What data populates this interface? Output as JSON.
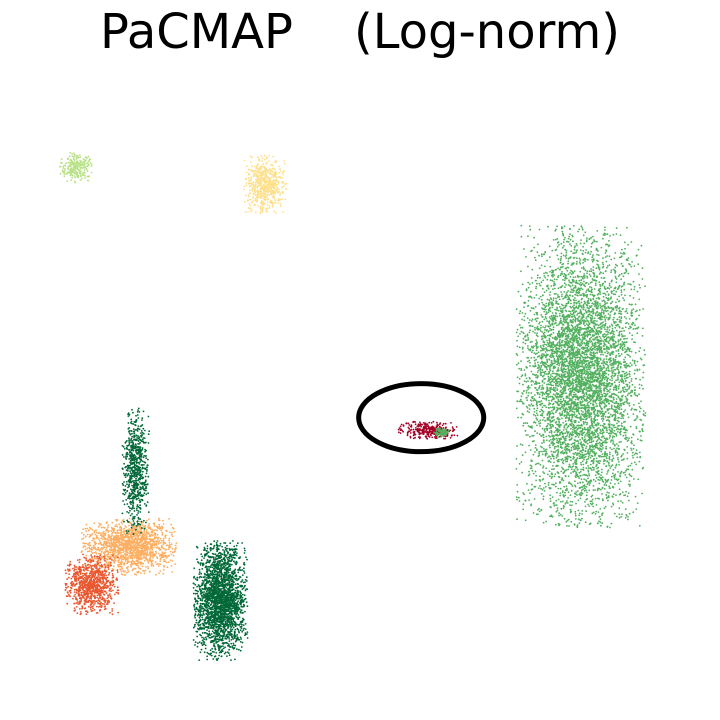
{
  "chart_data": {
    "type": "scatter",
    "title": "PaCMAP    (Log-norm)",
    "xlabel": "",
    "ylabel": "",
    "axes_visible": false,
    "grid": false,
    "legend": "none",
    "xlim": [
      0,
      100
    ],
    "ylim": [
      0,
      100
    ],
    "clusters": [
      {
        "color": "#b8e186",
        "center": [
          8.4,
          84.2
        ],
        "extent": [
          2.6,
          2.4
        ],
        "density": 250
      },
      {
        "color": "#fee08b",
        "center": [
          36.0,
          81.5
        ],
        "extent": [
          3.2,
          4.6
        ],
        "density": 600
      },
      {
        "color": "#52b05f",
        "center": [
          82.5,
          51.0
        ],
        "extent": [
          9.5,
          24.0
        ],
        "density": 6000
      },
      {
        "color": "#006837",
        "center": [
          29.5,
          15.5
        ],
        "extent": [
          4.0,
          9.5
        ],
        "density": 2400
      },
      {
        "color": "#fdae61",
        "center": [
          16.0,
          24.0
        ],
        "extent": [
          7.0,
          4.5
        ],
        "density": 1500
      },
      {
        "color": "#e9572f",
        "center": [
          10.5,
          18.0
        ],
        "extent": [
          4.0,
          4.8
        ],
        "density": 900
      },
      {
        "color": "#006837",
        "center": [
          17.0,
          36.0
        ],
        "extent": [
          2.0,
          10.0
        ],
        "density": 700
      },
      {
        "color": "#a50026",
        "center": [
          60.0,
          42.5
        ],
        "extent": [
          4.5,
          1.5
        ],
        "density": 300
      },
      {
        "color": "#52b05f",
        "center": [
          62.0,
          42.2
        ],
        "extent": [
          1.2,
          0.8
        ],
        "density": 80
      }
    ],
    "annotations": [
      {
        "type": "ellipse",
        "center": [
          59.0,
          44.5
        ],
        "radii": [
          9.2,
          5.4
        ],
        "color": "#000000"
      }
    ]
  }
}
